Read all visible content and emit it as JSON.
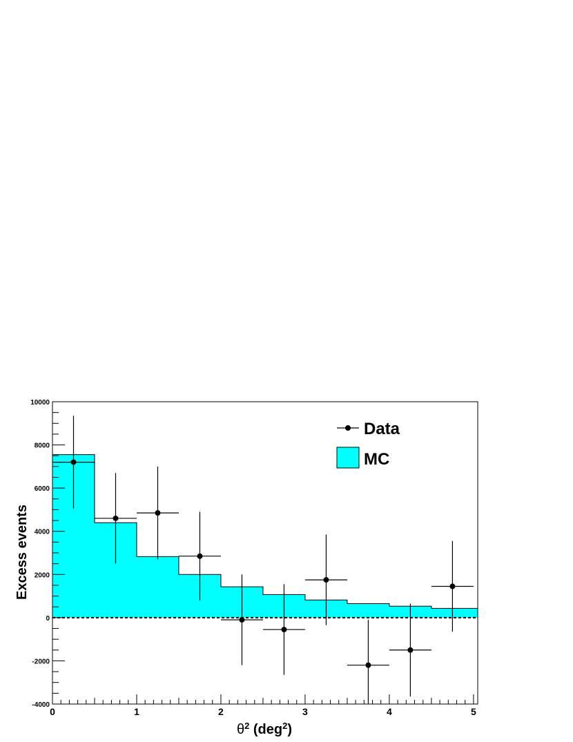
{
  "chart_data": {
    "type": "bar",
    "title": "",
    "xlabel_base": "θ",
    "xlabel_sup1": "2",
    "xlabel_mid": " (deg",
    "xlabel_sup2": "2",
    "xlabel_end": ")",
    "ylabel": "Excess events",
    "xlim": [
      0,
      5.05
    ],
    "ylim": [
      -4000,
      10000
    ],
    "xticks": [
      0,
      1,
      2,
      3,
      4,
      5
    ],
    "yticks": [
      -4000,
      -2000,
      0,
      2000,
      4000,
      6000,
      8000,
      10000
    ],
    "legend": {
      "position": "top-right",
      "data_label": "Data",
      "mc_label": "MC"
    },
    "colors": {
      "mc_fill": "#00ffff",
      "line": "#000000"
    },
    "mc_histogram": {
      "name": "MC",
      "bin_edges": [
        0,
        0.5,
        1.0,
        1.5,
        2.0,
        2.5,
        3.0,
        3.5,
        4.0,
        4.5,
        5.05
      ],
      "values": [
        7550,
        4400,
        2830,
        2000,
        1430,
        1070,
        820,
        650,
        530,
        430
      ]
    },
    "data_points": {
      "name": "Data",
      "x": [
        0.25,
        0.75,
        1.25,
        1.75,
        2.25,
        2.75,
        3.25,
        3.75,
        4.25,
        4.75
      ],
      "y": [
        7200,
        4600,
        4850,
        2850,
        -100,
        -550,
        1750,
        -2200,
        -1500,
        1450
      ],
      "x_err": [
        0.25,
        0.25,
        0.25,
        0.25,
        0.25,
        0.25,
        0.25,
        0.25,
        0.25,
        0.25
      ],
      "y_err": [
        2150,
        2100,
        2150,
        2050,
        2100,
        2100,
        2100,
        2100,
        2150,
        2100
      ]
    },
    "grid": false
  }
}
